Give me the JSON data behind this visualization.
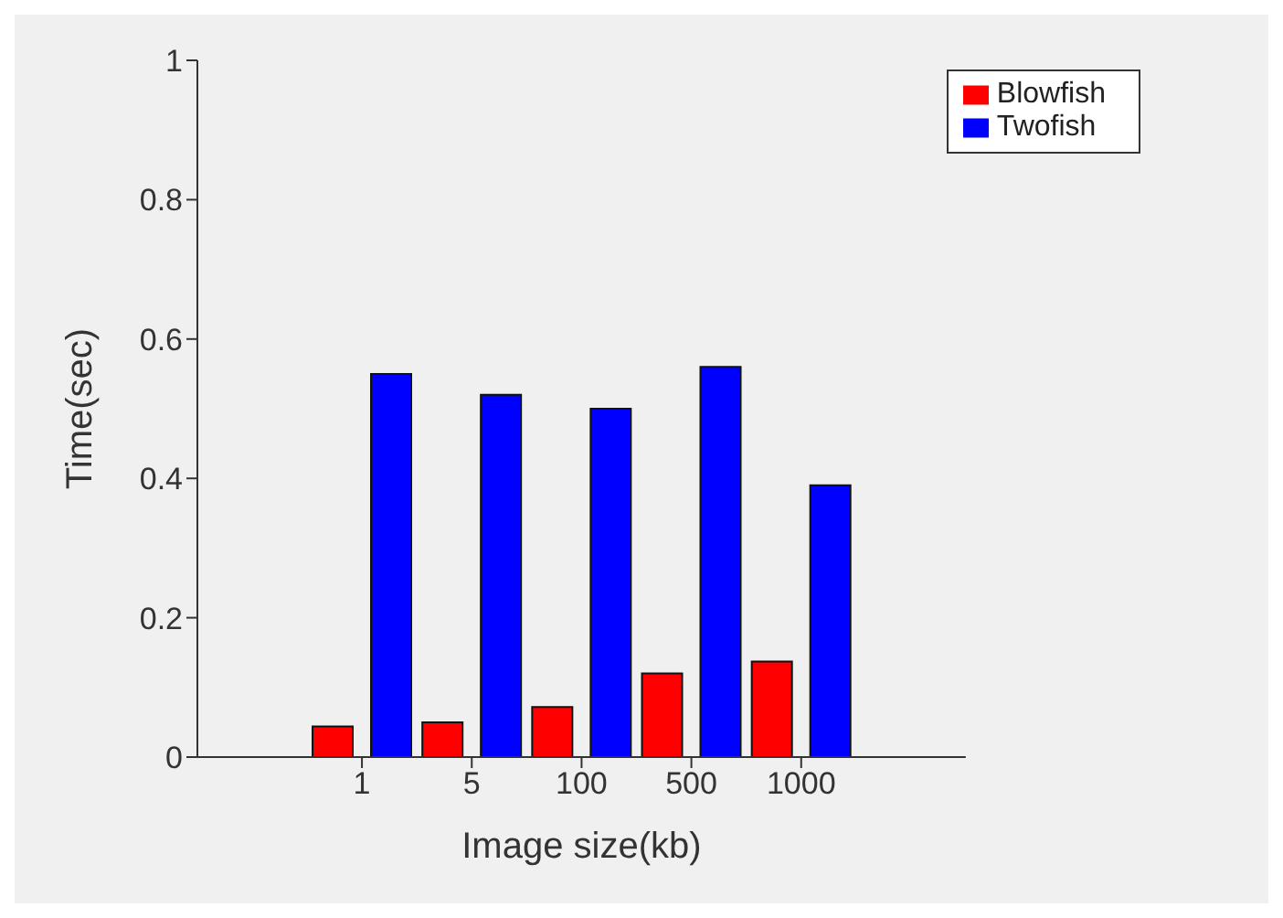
{
  "chart_data": {
    "type": "bar",
    "xlabel": "Image size(kb)",
    "ylabel": "Time(sec)",
    "categories": [
      "1",
      "5",
      "100",
      "500",
      "1000"
    ],
    "series": [
      {
        "name": "Blowfish",
        "color": "#ff0000",
        "values": [
          0.044,
          0.05,
          0.072,
          0.12,
          0.137
        ]
      },
      {
        "name": "Twofish",
        "color": "#0000ff",
        "values": [
          0.55,
          0.52,
          0.5,
          0.56,
          0.39
        ]
      }
    ],
    "ylim": [
      0,
      1
    ],
    "yticks": [
      0,
      0.2,
      0.4,
      0.6,
      0.8,
      1
    ],
    "grid": false,
    "legend": "top right"
  }
}
